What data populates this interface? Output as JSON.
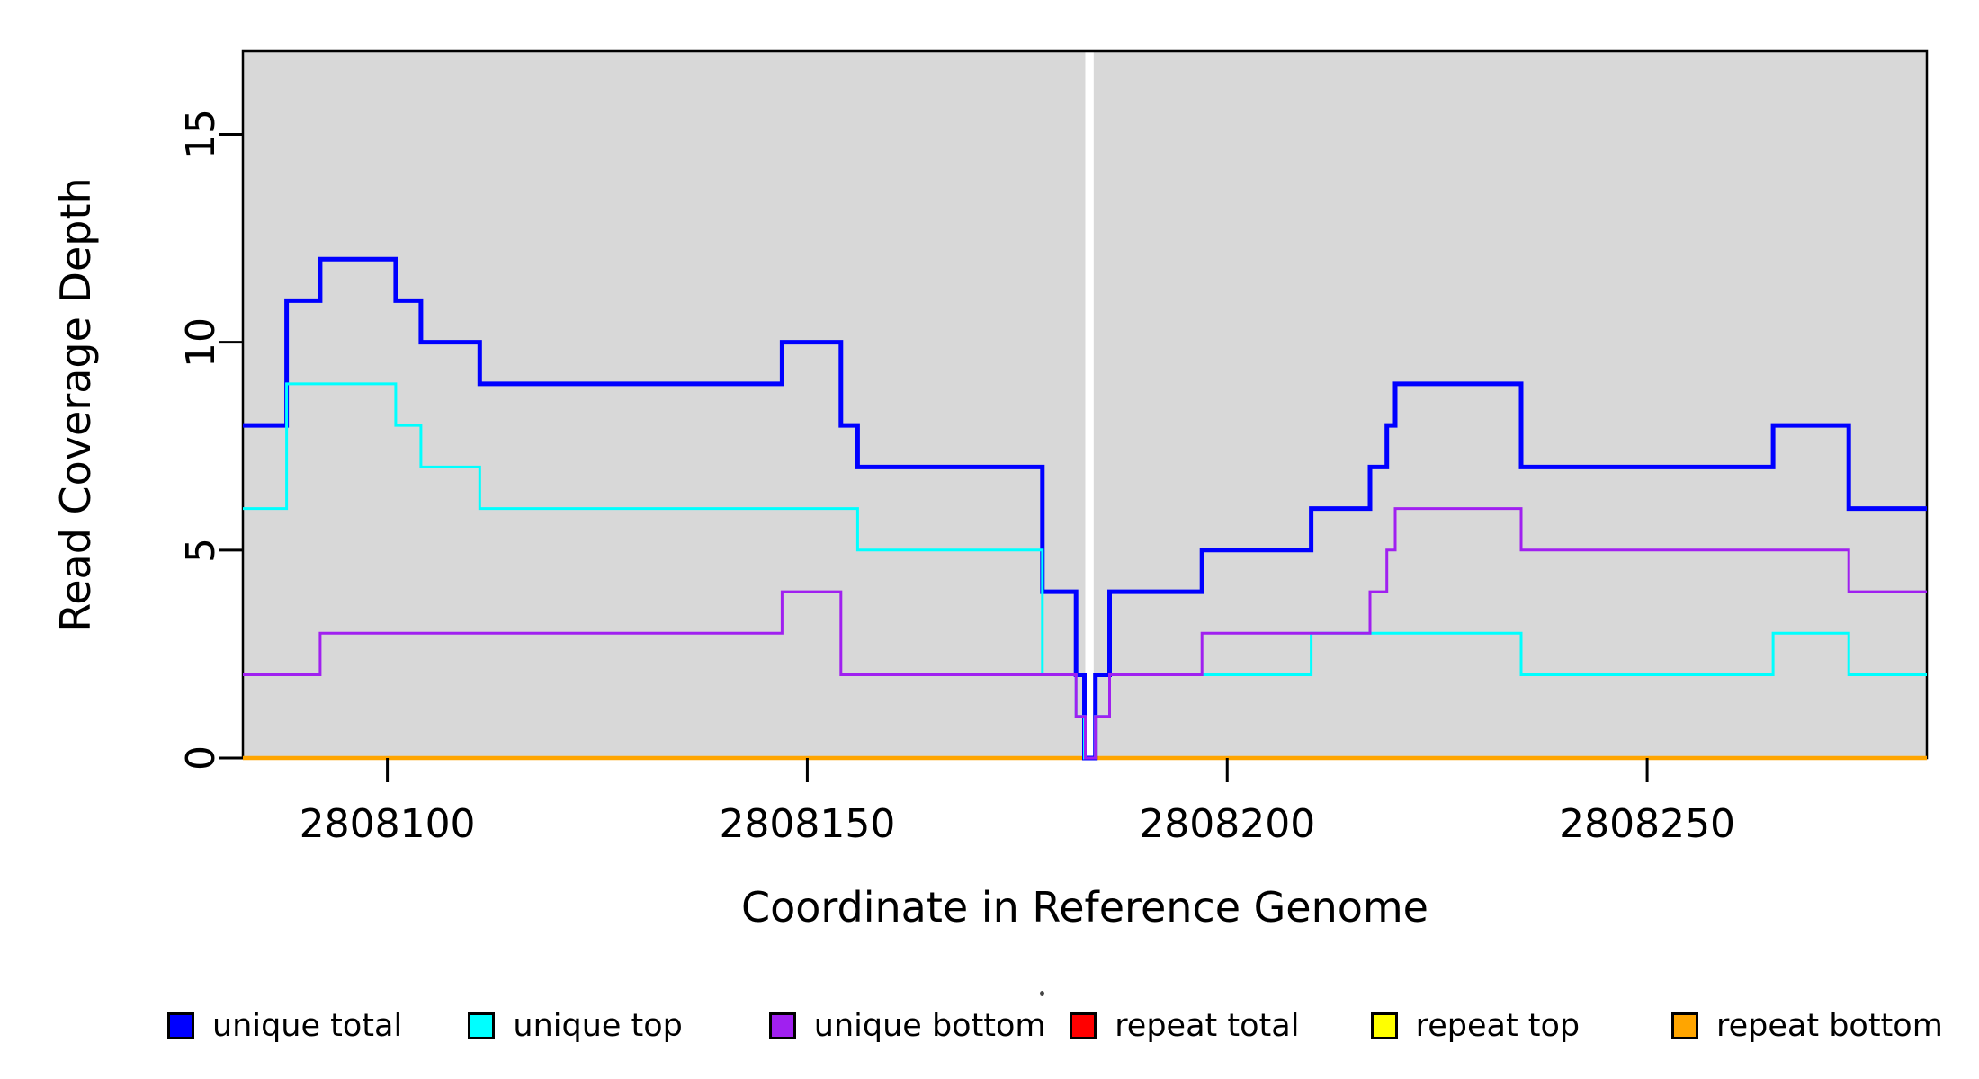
{
  "figure": {
    "background": "#FFFFFF",
    "plot_bg": "#D8D8D8",
    "border_color": "#000000",
    "tick_color": "#000000"
  },
  "chart_data": {
    "type": "line",
    "subtype": "step-coverage",
    "title": "",
    "xlabel": "Coordinate in Reference Genome",
    "ylabel": "Read Coverage Depth",
    "xlim": [
      2808082.8,
      2808283.3
    ],
    "ylim": [
      0,
      17
    ],
    "x_ticks": [
      2808100,
      2808150,
      2808200,
      2808250
    ],
    "y_ticks": [
      0,
      5,
      10,
      15
    ],
    "grid": false,
    "legend_position": "bottom",
    "gap_marker": {
      "x_start": 2808183.1,
      "x_end": 2808184.1,
      "color": "#FFFFFF"
    },
    "draw_order": [
      "repeat total",
      "repeat top",
      "repeat bottom",
      "unique total",
      "unique top",
      "unique bottom"
    ],
    "series": [
      {
        "name": "unique total",
        "color": "#0000FF",
        "line_width": 5,
        "steps": [
          [
            2808082.8,
            8
          ],
          [
            2808088,
            11
          ],
          [
            2808092,
            12
          ],
          [
            2808101,
            11
          ],
          [
            2808104,
            10
          ],
          [
            2808111,
            9
          ],
          [
            2808147,
            10
          ],
          [
            2808154,
            8
          ],
          [
            2808156,
            7
          ],
          [
            2808178,
            4
          ],
          [
            2808182,
            2
          ],
          [
            2808183,
            0
          ],
          [
            2808184.3,
            2
          ],
          [
            2808186,
            4
          ],
          [
            2808197,
            5
          ],
          [
            2808210,
            6
          ],
          [
            2808217,
            7
          ],
          [
            2808219,
            8
          ],
          [
            2808220,
            9
          ],
          [
            2808235,
            7
          ],
          [
            2808265,
            8
          ],
          [
            2808274,
            6
          ]
        ]
      },
      {
        "name": "unique top",
        "color": "#00FFFF",
        "line_width": 3,
        "steps": [
          [
            2808082.8,
            6
          ],
          [
            2808088,
            9
          ],
          [
            2808101,
            8
          ],
          [
            2808104,
            7
          ],
          [
            2808111,
            6
          ],
          [
            2808156,
            5
          ],
          [
            2808178,
            2
          ],
          [
            2808182,
            1
          ],
          [
            2808183,
            0
          ],
          [
            2808184.3,
            1
          ],
          [
            2808186,
            2
          ],
          [
            2808210,
            3
          ],
          [
            2808235,
            2
          ],
          [
            2808265,
            3
          ],
          [
            2808274,
            2
          ]
        ]
      },
      {
        "name": "unique bottom",
        "color": "#A020F0",
        "line_width": 3,
        "steps": [
          [
            2808082.8,
            2
          ],
          [
            2808092,
            3
          ],
          [
            2808147,
            4
          ],
          [
            2808154,
            2
          ],
          [
            2808182,
            1
          ],
          [
            2808183.1,
            0
          ],
          [
            2808184.3,
            1
          ],
          [
            2808186,
            2
          ],
          [
            2808197,
            3
          ],
          [
            2808217,
            4
          ],
          [
            2808219,
            5
          ],
          [
            2808220,
            6
          ],
          [
            2808235,
            5
          ],
          [
            2808274,
            4
          ]
        ]
      },
      {
        "name": "repeat total",
        "color": "#FF0000",
        "line_width": 3,
        "steps": [
          [
            2808082.8,
            0
          ]
        ]
      },
      {
        "name": "repeat top",
        "color": "#FFFF00",
        "line_width": 3,
        "steps": [
          [
            2808082.8,
            0
          ]
        ]
      },
      {
        "name": "repeat bottom",
        "color": "#FFA500",
        "line_width": 4.5,
        "steps": [
          [
            2808082.8,
            0
          ]
        ]
      }
    ]
  },
  "legend": {
    "items": [
      {
        "label": "unique total",
        "color": "#0000FF"
      },
      {
        "label": "unique top",
        "color": "#00FFFF"
      },
      {
        "label": "unique bottom",
        "color": "#A020F0"
      },
      {
        "label": "repeat total",
        "color": "#FF0000"
      },
      {
        "label": "repeat top",
        "color": "#FFFF00"
      },
      {
        "label": "repeat bottom",
        "color": "#FFA500"
      }
    ]
  }
}
